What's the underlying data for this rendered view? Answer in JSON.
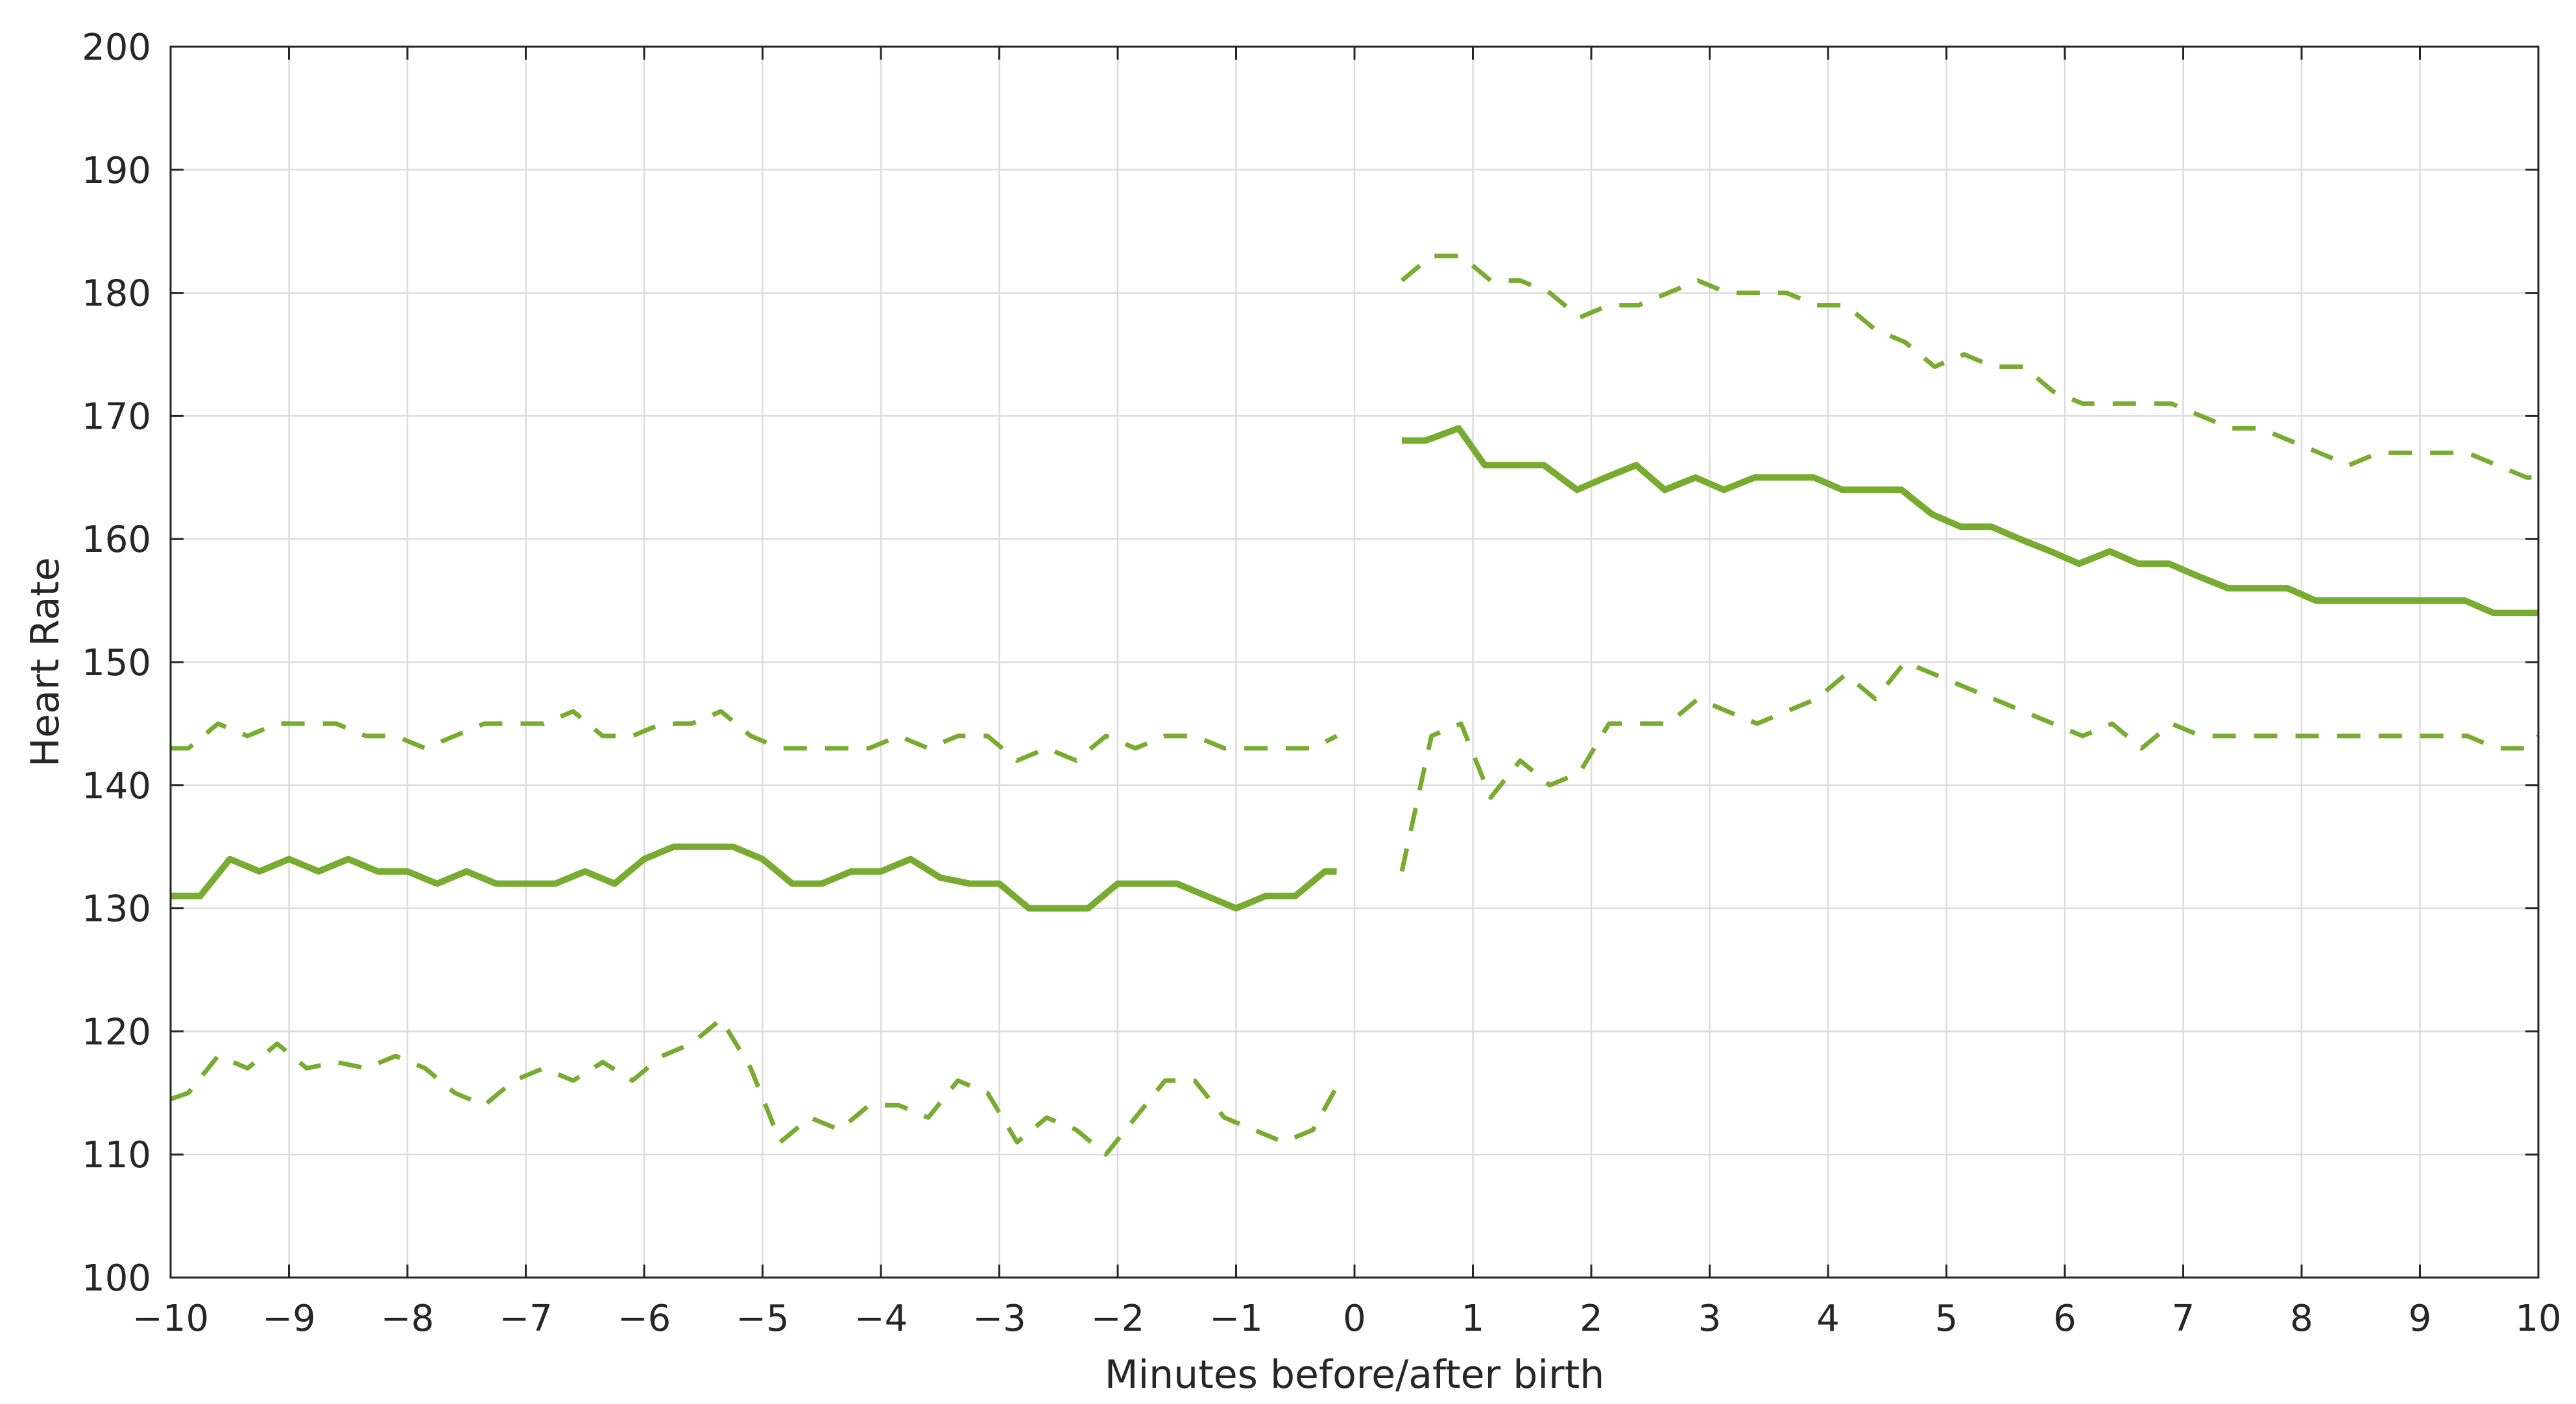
{
  "chart_data": {
    "type": "line",
    "title": "",
    "xlabel": "Minutes before/after birth",
    "ylabel": "Heart Rate",
    "xlim": [
      -10,
      10
    ],
    "ylim": [
      100,
      200
    ],
    "xticks": [
      -10,
      -9,
      -8,
      -7,
      -6,
      -5,
      -4,
      -3,
      -2,
      -1,
      0,
      1,
      2,
      3,
      4,
      5,
      6,
      7,
      8,
      9,
      10
    ],
    "yticks": [
      100,
      110,
      120,
      130,
      140,
      150,
      160,
      170,
      180,
      190,
      200
    ],
    "xtick_labels": [
      "−10",
      "−9",
      "−8",
      "−7",
      "−6",
      "−5",
      "−4",
      "−3",
      "−2",
      "−1",
      "0",
      "1",
      "2",
      "3",
      "4",
      "5",
      "6",
      "7",
      "8",
      "9",
      "10"
    ],
    "ytick_labels": [
      "100",
      "110",
      "120",
      "130",
      "140",
      "150",
      "160",
      "170",
      "180",
      "190",
      "200"
    ],
    "grid": true,
    "legend": "none",
    "series": [
      {
        "role": "median",
        "style": "solid",
        "color": "#77AC30",
        "segments": [
          {
            "x": [
              -10,
              -9.75,
              -9.5,
              -9.25,
              -9,
              -8.75,
              -8.5,
              -8.25,
              -8,
              -7.75,
              -7.5,
              -7.25,
              -7,
              -6.75,
              -6.5,
              -6.25,
              -6,
              -5.75,
              -5.5,
              -5.25,
              -5,
              -4.75,
              -4.5,
              -4.25,
              -4,
              -3.75,
              -3.5,
              -3.25,
              -3,
              -2.75,
              -2.5,
              -2.25,
              -2,
              -1.75,
              -1.5,
              -1.25,
              -1,
              -0.75,
              -0.5,
              -0.25,
              -0.15
            ],
            "y": [
              131,
              131,
              134,
              133,
              134,
              133,
              134,
              133,
              133,
              132,
              133,
              132,
              132,
              132,
              133,
              132,
              134,
              135,
              135,
              135,
              134,
              132,
              132,
              133,
              133,
              134,
              132.5,
              132,
              132,
              130,
              130,
              130,
              132,
              132,
              132,
              131,
              130,
              131,
              131,
              133,
              133
            ]
          },
          {
            "x": [
              0.4,
              0.6,
              0.88,
              1.1,
              1.35,
              1.6,
              1.88,
              2.12,
              2.38,
              2.62,
              2.88,
              3.12,
              3.38,
              3.62,
              3.88,
              4.12,
              4.38,
              4.62,
              4.88,
              5.12,
              5.38,
              5.62,
              5.88,
              6.12,
              6.38,
              6.62,
              6.88,
              7.12,
              7.38,
              7.62,
              7.88,
              8.12,
              8.38,
              8.62,
              8.88,
              9.12,
              9.38,
              9.62,
              9.88,
              10
            ],
            "y": [
              168,
              168,
              169,
              166,
              166,
              166,
              164,
              165,
              166,
              164,
              165,
              164,
              165,
              165,
              165,
              164,
              164,
              164,
              162,
              161,
              161,
              160,
              159,
              158,
              159,
              158,
              158,
              157,
              156,
              156,
              156,
              155,
              155,
              155,
              155,
              155,
              155,
              154,
              154,
              154
            ]
          }
        ]
      },
      {
        "role": "upper",
        "style": "dashed",
        "color": "#77AC30",
        "segments": [
          {
            "x": [
              -10,
              -9.85,
              -9.6,
              -9.35,
              -9.1,
              -8.85,
              -8.6,
              -8.35,
              -8.1,
              -7.85,
              -7.6,
              -7.35,
              -7.1,
              -6.85,
              -6.6,
              -6.35,
              -6.1,
              -5.85,
              -5.6,
              -5.35,
              -5.1,
              -4.85,
              -4.6,
              -4.35,
              -4.1,
              -3.85,
              -3.6,
              -3.35,
              -3.1,
              -2.85,
              -2.6,
              -2.35,
              -2.1,
              -1.85,
              -1.6,
              -1.35,
              -1.1,
              -0.85,
              -0.6,
              -0.35,
              -0.15
            ],
            "y": [
              143,
              143,
              145,
              144,
              145,
              145,
              145,
              144,
              144,
              143,
              144,
              145,
              145,
              145,
              146,
              144,
              144,
              145,
              145,
              146,
              144,
              143,
              143,
              143,
              143,
              144,
              143,
              144,
              144,
              142,
              143,
              142,
              144,
              143,
              144,
              144,
              143,
              143,
              143,
              143,
              144
            ]
          },
          {
            "x": [
              0.4,
              0.65,
              0.9,
              1.15,
              1.4,
              1.65,
              1.9,
              2.15,
              2.4,
              2.65,
              2.9,
              3.15,
              3.4,
              3.65,
              3.9,
              4.15,
              4.4,
              4.65,
              4.9,
              5.15,
              5.4,
              5.65,
              5.9,
              6.15,
              6.4,
              6.65,
              6.9,
              7.15,
              7.4,
              7.65,
              7.9,
              8.15,
              8.4,
              8.65,
              8.9,
              9.15,
              9.4,
              9.65,
              9.9,
              10
            ],
            "y": [
              181,
              183,
              183,
              181,
              181,
              180,
              178,
              179,
              179,
              180,
              181,
              180,
              180,
              180,
              179,
              179,
              177,
              176,
              174,
              175,
              174,
              174,
              172,
              171,
              171,
              171,
              171,
              170,
              169,
              169,
              168,
              167,
              166,
              167,
              167,
              167,
              167,
              166,
              165,
              165
            ]
          }
        ]
      },
      {
        "role": "lower",
        "style": "dashed",
        "color": "#77AC30",
        "segments": [
          {
            "x": [
              -10,
              -9.85,
              -9.6,
              -9.35,
              -9.1,
              -8.85,
              -8.6,
              -8.35,
              -8.1,
              -7.85,
              -7.6,
              -7.35,
              -7.1,
              -6.85,
              -6.6,
              -6.35,
              -6.1,
              -5.85,
              -5.6,
              -5.35,
              -5.1,
              -4.85,
              -4.6,
              -4.35,
              -4.1,
              -3.85,
              -3.6,
              -3.35,
              -3.1,
              -2.85,
              -2.6,
              -2.35,
              -2.1,
              -1.85,
              -1.6,
              -1.35,
              -1.1,
              -0.85,
              -0.6,
              -0.35,
              -0.15
            ],
            "y": [
              114.5,
              115,
              118,
              117,
              119,
              117,
              117.5,
              117,
              118,
              117,
              115,
              114,
              116,
              117,
              116,
              117.5,
              116,
              118,
              119,
              121,
              117,
              111,
              113,
              112,
              114,
              114,
              113,
              116,
              115,
              111,
              113,
              112,
              110,
              113,
              116,
              116,
              113,
              112,
              111,
              112,
              115.5
            ]
          },
          {
            "x": [
              0.4,
              0.65,
              0.9,
              1.15,
              1.4,
              1.65,
              1.9,
              2.15,
              2.4,
              2.65,
              2.9,
              3.15,
              3.4,
              3.65,
              3.9,
              4.15,
              4.4,
              4.65,
              4.9,
              5.15,
              5.4,
              5.65,
              5.9,
              6.15,
              6.4,
              6.65,
              6.9,
              7.15,
              7.4,
              7.65,
              7.9,
              8.15,
              8.4,
              8.65,
              8.9,
              9.15,
              9.4,
              9.65,
              9.9,
              10
            ],
            "y": [
              133,
              144,
              145,
              139,
              142,
              140,
              141,
              145,
              145,
              145,
              147,
              146,
              145,
              146,
              147,
              149,
              147,
              150,
              149,
              148,
              147,
              146,
              145,
              144,
              145,
              143,
              145,
              144,
              144,
              144,
              144,
              144,
              144,
              144,
              144,
              144,
              144,
              143,
              143,
              144
            ]
          }
        ]
      }
    ]
  }
}
